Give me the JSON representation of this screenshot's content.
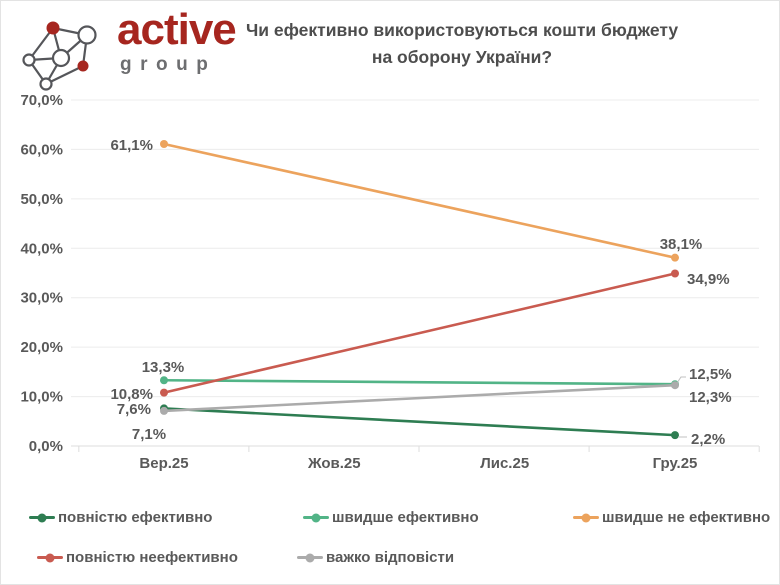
{
  "logo": {
    "brand": "active",
    "sub": "group"
  },
  "title": {
    "line1": "Чи ефективно використовуються кошти бюджету",
    "line2": "на оборону України?"
  },
  "chart_data": {
    "type": "line",
    "title": "Чи ефективно використовуються кошти бюджету на оборону України?",
    "categories": [
      "Вер.25",
      "Жов.25",
      "Лис.25",
      "Гру.25"
    ],
    "ylim": [
      0,
      70
    ],
    "y_ticks": [
      "0,0%",
      "10,0%",
      "20,0%",
      "30,0%",
      "40,0%",
      "50,0%",
      "60,0%",
      "70,0%"
    ],
    "grid": true,
    "legend_position": "bottom",
    "text_color": "#595959",
    "grid_color": "#ececec",
    "axis_color": "#dddddd",
    "series": [
      {
        "name": "повністю ефективно",
        "color": "#2e7d52",
        "values": [
          7.6,
          null,
          null,
          2.2
        ],
        "labels": [
          "7,6%",
          "2,2%"
        ]
      },
      {
        "name": "швидше ефективно",
        "color": "#52b487",
        "values": [
          13.3,
          null,
          null,
          12.5
        ],
        "labels": [
          "13,3%",
          "12,5%"
        ]
      },
      {
        "name": "швидше не ефективно",
        "color": "#eca35d",
        "values": [
          61.1,
          null,
          null,
          38.1
        ],
        "labels": [
          "61,1%",
          "38,1%"
        ]
      },
      {
        "name": "повністю неефективно",
        "color": "#c95b50",
        "values": [
          10.8,
          null,
          null,
          34.9
        ],
        "labels": [
          "10,8%",
          "34,9%"
        ]
      },
      {
        "name": "важко відповісти",
        "color": "#ababab",
        "values": [
          7.1,
          null,
          null,
          12.3
        ],
        "labels": [
          "7,1%",
          "12,3%"
        ]
      }
    ]
  }
}
